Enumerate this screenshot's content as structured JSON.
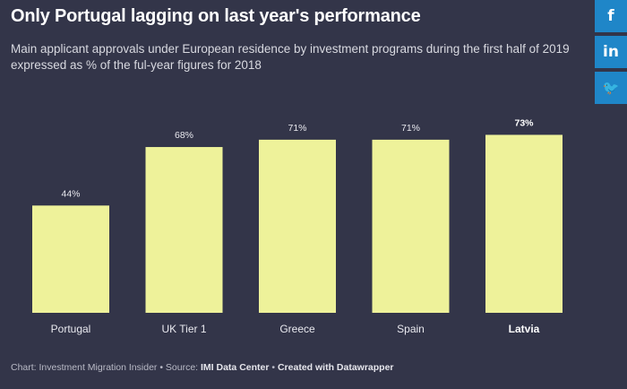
{
  "header": {
    "title": "Only Portugal lagging on last year's performance",
    "subtitle": "Main applicant approvals under European residence by investment programs during the first half of 2019 expressed as % of the ful-year figures for 2018"
  },
  "footer": {
    "chart_prefix": "Chart: Investment Migration Insider • Source: ",
    "source_name": "IMI Data Center",
    "separator": " • ",
    "created_with": "Created with Datawrapper"
  },
  "share": {
    "facebook_glyph": "f",
    "linkedin_glyph": "in",
    "twitter_glyph": "🐦"
  },
  "colors": {
    "background": "#333549",
    "bar": "#eef29a",
    "label": "#e9e9ef",
    "highlight_label": "#ffffff"
  },
  "chart_data": {
    "type": "bar",
    "categories": [
      "Portugal",
      "UK Tier 1",
      "Greece",
      "Spain",
      "Latvia"
    ],
    "values": [
      44,
      68,
      71,
      71,
      73
    ],
    "value_labels": [
      "44%",
      "68%",
      "71%",
      "71%",
      "73%"
    ],
    "highlight": "Latvia",
    "title": "Only Portugal lagging on last year's performance",
    "xlabel": "",
    "ylabel": "",
    "ylim": [
      0,
      100
    ],
    "grid": false
  }
}
